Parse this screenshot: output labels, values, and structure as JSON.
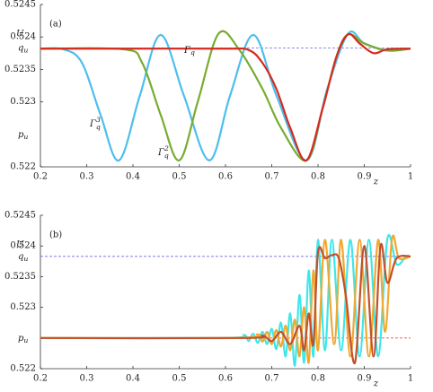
{
  "chart_data": [
    {
      "type": "line",
      "panel_label": "(a)",
      "ylabel": "U",
      "xlabel": "z",
      "xlim": [
        0.2,
        1
      ],
      "xticks": [
        0.2,
        0.3,
        0.4,
        0.5,
        0.6,
        0.7,
        0.8,
        0.9,
        1
      ],
      "ylim": [
        0.522,
        0.5245
      ],
      "yticks": [
        0.522,
        0.523,
        0.5235,
        0.524,
        0.5245
      ],
      "ref_lines": [
        {
          "value": 0.52383,
          "label": "q",
          "sub": "u",
          "color": "#6a6ae0",
          "dashed": true
        },
        {
          "value": 0.5225,
          "label": "p",
          "sub": "u",
          "color": "#e05050",
          "dashed": false
        }
      ],
      "series": [
        {
          "name": "Γ",
          "sub": "q",
          "sup": "3",
          "color": "#4dbeee",
          "x": [
            0.2,
            0.25,
            0.29,
            0.33,
            0.37,
            0.415,
            0.46,
            0.51,
            0.565,
            0.61,
            0.66,
            0.71,
            0.775,
            0.82,
            0.865,
            0.9,
            0.95,
            1.0
          ],
          "values": [
            0.52382,
            0.52381,
            0.5236,
            0.5228,
            0.5221,
            0.5231,
            0.52403,
            0.5231,
            0.5221,
            0.5231,
            0.52403,
            0.5231,
            0.5221,
            0.5232,
            0.52405,
            0.5239,
            0.52379,
            0.52382
          ]
        },
        {
          "name": "Γ",
          "sub": "q",
          "sup": "2",
          "color": "#77ac30",
          "x": [
            0.2,
            0.38,
            0.42,
            0.46,
            0.5,
            0.54,
            0.585,
            0.63,
            0.68,
            0.72,
            0.775,
            0.81,
            0.84,
            0.865,
            0.9,
            0.95,
            1.0
          ],
          "values": [
            0.52382,
            0.52381,
            0.5236,
            0.5228,
            0.5221,
            0.523,
            0.52405,
            0.5238,
            0.5232,
            0.5226,
            0.5221,
            0.5229,
            0.5237,
            0.52404,
            0.5239,
            0.52379,
            0.52382
          ]
        },
        {
          "name": "Γ",
          "sub": "q",
          "sup": "",
          "color": "#d62a1e",
          "x": [
            0.2,
            0.4,
            0.6,
            0.65,
            0.68,
            0.71,
            0.74,
            0.775,
            0.81,
            0.84,
            0.865,
            0.89,
            0.92,
            0.95,
            1.0
          ],
          "values": [
            0.52382,
            0.52382,
            0.52382,
            0.5238,
            0.5236,
            0.5232,
            0.5226,
            0.5221,
            0.5229,
            0.5237,
            0.52404,
            0.5239,
            0.52375,
            0.52381,
            0.52382
          ]
        }
      ]
    },
    {
      "type": "line",
      "panel_label": "(b)",
      "ylabel": "U",
      "xlabel": "z",
      "xlim": [
        0.2,
        1
      ],
      "xticks": [
        0.2,
        0.3,
        0.4,
        0.5,
        0.6,
        0.7,
        0.8,
        0.9,
        1
      ],
      "ylim": [
        0.522,
        0.5245
      ],
      "yticks": [
        0.522,
        0.523,
        0.5235,
        0.524,
        0.5245
      ],
      "ref_lines": [
        {
          "value": 0.52383,
          "label": "q",
          "sub": "u",
          "color": "#6a6ae0",
          "dashed": true
        },
        {
          "value": 0.5225,
          "label": "p",
          "sub": "u",
          "color": "#e05050",
          "dashed": true
        }
      ],
      "series": [
        {
          "color": "#3ee6ea",
          "x": [
            0.2,
            0.6,
            0.64,
            0.65,
            0.66,
            0.67,
            0.68,
            0.69,
            0.7,
            0.71,
            0.72,
            0.73,
            0.74,
            0.75,
            0.76,
            0.77,
            0.78,
            0.79,
            0.8,
            0.815,
            0.83,
            0.85,
            0.87,
            0.89,
            0.91,
            0.93,
            0.95,
            0.97,
            0.99,
            1.0
          ],
          "values": [
            0.5225,
            0.5225,
            0.52255,
            0.52245,
            0.52257,
            0.52242,
            0.5226,
            0.5224,
            0.52265,
            0.52232,
            0.52275,
            0.5222,
            0.5229,
            0.52205,
            0.5232,
            0.5221,
            0.5236,
            0.5222,
            0.5241,
            0.5223,
            0.5241,
            0.5223,
            0.5241,
            0.5222,
            0.5241,
            0.5222,
            0.52412,
            0.5237,
            0.52383,
            0.52383
          ]
        },
        {
          "color": "#f0a830",
          "x": [
            0.2,
            0.62,
            0.67,
            0.68,
            0.69,
            0.7,
            0.71,
            0.72,
            0.73,
            0.74,
            0.75,
            0.76,
            0.77,
            0.78,
            0.79,
            0.8,
            0.815,
            0.835,
            0.85,
            0.87,
            0.89,
            0.91,
            0.93,
            0.945,
            0.96,
            0.975,
            1.0
          ],
          "values": [
            0.5225,
            0.5225,
            0.52256,
            0.52244,
            0.5226,
            0.5224,
            0.52263,
            0.52236,
            0.5227,
            0.5223,
            0.5228,
            0.5222,
            0.523,
            0.5221,
            0.5236,
            0.5223,
            0.5241,
            0.5224,
            0.5241,
            0.5222,
            0.5241,
            0.5222,
            0.5241,
            0.5226,
            0.52412,
            0.5238,
            0.52383
          ]
        },
        {
          "color": "#c2502b",
          "x": [
            0.2,
            0.64,
            0.68,
            0.7,
            0.72,
            0.74,
            0.76,
            0.77,
            0.78,
            0.79,
            0.8,
            0.815,
            0.83,
            0.845,
            0.86,
            0.88,
            0.9,
            0.92,
            0.935,
            0.95,
            0.97,
            1.0
          ],
          "values": [
            0.5225,
            0.5225,
            0.52254,
            0.52245,
            0.5226,
            0.5224,
            0.5227,
            0.5223,
            0.5229,
            0.5224,
            0.5239,
            0.5238,
            0.52385,
            0.5238,
            0.5232,
            0.5221,
            0.524,
            0.5222,
            0.524,
            0.5234,
            0.5238,
            0.52383
          ]
        }
      ]
    }
  ]
}
